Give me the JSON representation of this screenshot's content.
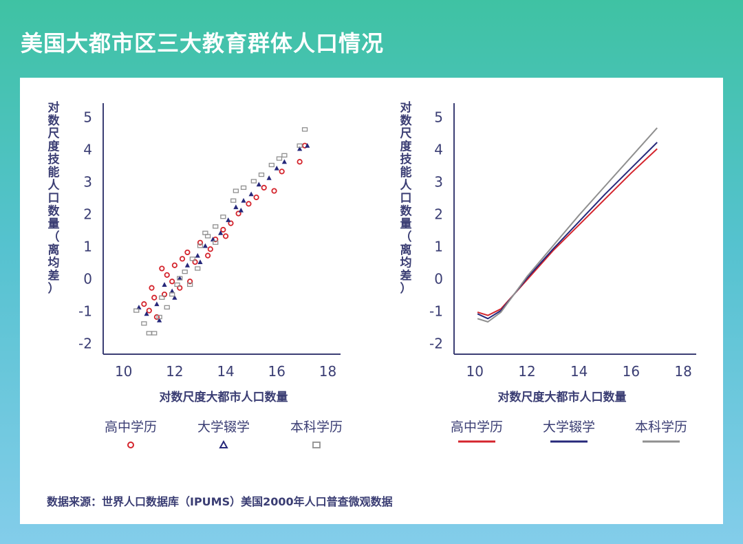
{
  "title": "美国大都市区三大教育群体人口情况",
  "source": "数据来源：世界人口数据库（IPUMS）美国2000年人口普查微观数据",
  "colors": {
    "high_school": "#d4242c",
    "some_college": "#26287a",
    "bachelor": "#8f8f8f",
    "axis": "#3a3d73"
  },
  "chart_data": [
    {
      "type": "scatter",
      "xlabel": "对数尺度大都市人口数量",
      "ylabel_chars": [
        "对",
        "数",
        "尺",
        "度",
        "技",
        "能",
        "人",
        "口",
        "数",
        "量",
        "（",
        "离",
        "均",
        "差",
        "）"
      ],
      "xlim": [
        9.2,
        18.5
      ],
      "ylim": [
        -2.2,
        5.2
      ],
      "xticks": [
        10,
        12,
        14,
        16,
        18
      ],
      "yticks": [
        5,
        4,
        3,
        2,
        1,
        0,
        -1,
        -2
      ],
      "legend": [
        "高中学历",
        "大学辍学",
        "本科学历"
      ],
      "series": [
        {
          "name": "高中学历",
          "marker": "circle",
          "points": [
            [
              10.8,
              -0.8
            ],
            [
              11.0,
              -1.0
            ],
            [
              11.2,
              -0.6
            ],
            [
              11.5,
              0.3
            ],
            [
              11.3,
              -1.2
            ],
            [
              11.7,
              0.1
            ],
            [
              11.9,
              -0.1
            ],
            [
              12.0,
              0.4
            ],
            [
              12.3,
              0.6
            ],
            [
              12.5,
              0.8
            ],
            [
              12.8,
              0.5
            ],
            [
              12.6,
              -0.1
            ],
            [
              13.0,
              1.1
            ],
            [
              13.3,
              0.7
            ],
            [
              13.6,
              1.2
            ],
            [
              13.9,
              1.5
            ],
            [
              14.2,
              1.7
            ],
            [
              14.5,
              2.0
            ],
            [
              14.9,
              2.3
            ],
            [
              15.2,
              2.5
            ],
            [
              15.5,
              2.8
            ],
            [
              15.9,
              2.7
            ],
            [
              16.2,
              3.3
            ],
            [
              16.9,
              3.6
            ],
            [
              17.1,
              4.1
            ],
            [
              11.6,
              -0.5
            ],
            [
              12.2,
              -0.3
            ],
            [
              13.4,
              0.9
            ],
            [
              14.0,
              1.3
            ],
            [
              11.1,
              -0.3
            ]
          ]
        },
        {
          "name": "大学辍学",
          "marker": "triangle",
          "points": [
            [
              10.6,
              -0.9
            ],
            [
              10.9,
              -1.1
            ],
            [
              11.3,
              -0.8
            ],
            [
              11.6,
              -0.2
            ],
            [
              11.9,
              -0.4
            ],
            [
              12.2,
              0.0
            ],
            [
              12.5,
              0.4
            ],
            [
              12.9,
              0.7
            ],
            [
              13.2,
              1.0
            ],
            [
              13.5,
              1.2
            ],
            [
              13.8,
              1.4
            ],
            [
              14.1,
              1.8
            ],
            [
              14.4,
              2.2
            ],
            [
              14.7,
              2.4
            ],
            [
              15.0,
              2.6
            ],
            [
              15.3,
              2.9
            ],
            [
              15.7,
              3.1
            ],
            [
              16.0,
              3.4
            ],
            [
              16.3,
              3.6
            ],
            [
              16.9,
              4.0
            ],
            [
              17.2,
              4.1
            ],
            [
              12.0,
              -0.6
            ],
            [
              13.0,
              0.5
            ],
            [
              14.6,
              2.1
            ],
            [
              11.4,
              -1.3
            ]
          ]
        },
        {
          "name": "本科学历",
          "marker": "square",
          "points": [
            [
              10.5,
              -1.0
            ],
            [
              10.8,
              -1.4
            ],
            [
              11.0,
              -1.7
            ],
            [
              11.2,
              -1.7
            ],
            [
              11.4,
              -1.2
            ],
            [
              11.7,
              -0.9
            ],
            [
              11.9,
              -0.5
            ],
            [
              12.1,
              -0.2
            ],
            [
              12.4,
              0.2
            ],
            [
              12.7,
              0.6
            ],
            [
              13.0,
              1.0
            ],
            [
              13.3,
              1.3
            ],
            [
              13.6,
              1.6
            ],
            [
              13.9,
              1.9
            ],
            [
              14.3,
              2.4
            ],
            [
              14.7,
              2.8
            ],
            [
              15.1,
              3.0
            ],
            [
              15.4,
              3.2
            ],
            [
              15.8,
              3.5
            ],
            [
              16.1,
              3.7
            ],
            [
              16.3,
              3.8
            ],
            [
              16.9,
              4.1
            ],
            [
              17.1,
              4.6
            ],
            [
              12.2,
              0.0
            ],
            [
              12.9,
              0.3
            ],
            [
              13.6,
              1.1
            ],
            [
              14.4,
              2.7
            ],
            [
              11.5,
              -0.6
            ],
            [
              12.6,
              -0.2
            ],
            [
              13.2,
              1.4
            ]
          ]
        }
      ]
    },
    {
      "type": "line",
      "xlabel": "对数尺度大都市人口数量",
      "ylabel_chars": [
        "对",
        "数",
        "尺",
        "度",
        "技",
        "能",
        "人",
        "口",
        "数",
        "量",
        "（",
        "离",
        "均",
        "差",
        "）"
      ],
      "xlim": [
        9.2,
        18.5
      ],
      "ylim": [
        -2.2,
        5.2
      ],
      "xticks": [
        10,
        12,
        14,
        16,
        18
      ],
      "yticks": [
        5,
        4,
        3,
        2,
        1,
        0,
        -1,
        -2
      ],
      "legend": [
        "高中学历",
        "大学辍学",
        "本科学历"
      ],
      "series": [
        {
          "name": "高中学历",
          "x": [
            10.1,
            10.5,
            11.0,
            11.5,
            12.0,
            13.0,
            14.0,
            15.0,
            16.0,
            17.0
          ],
          "y": [
            -1.05,
            -1.15,
            -0.95,
            -0.5,
            -0.05,
            0.85,
            1.65,
            2.45,
            3.25,
            4.0
          ]
        },
        {
          "name": "大学辍学",
          "x": [
            10.1,
            10.5,
            11.0,
            11.5,
            12.0,
            13.0,
            14.0,
            15.0,
            16.0,
            17.0
          ],
          "y": [
            -1.1,
            -1.25,
            -1.0,
            -0.5,
            0.0,
            0.9,
            1.75,
            2.6,
            3.4,
            4.2
          ]
        },
        {
          "name": "本科学历",
          "x": [
            10.1,
            10.5,
            11.0,
            11.5,
            12.0,
            13.0,
            14.0,
            15.0,
            16.0,
            17.0
          ],
          "y": [
            -1.25,
            -1.35,
            -1.05,
            -0.5,
            0.05,
            1.0,
            1.95,
            2.85,
            3.75,
            4.65
          ]
        }
      ]
    }
  ]
}
